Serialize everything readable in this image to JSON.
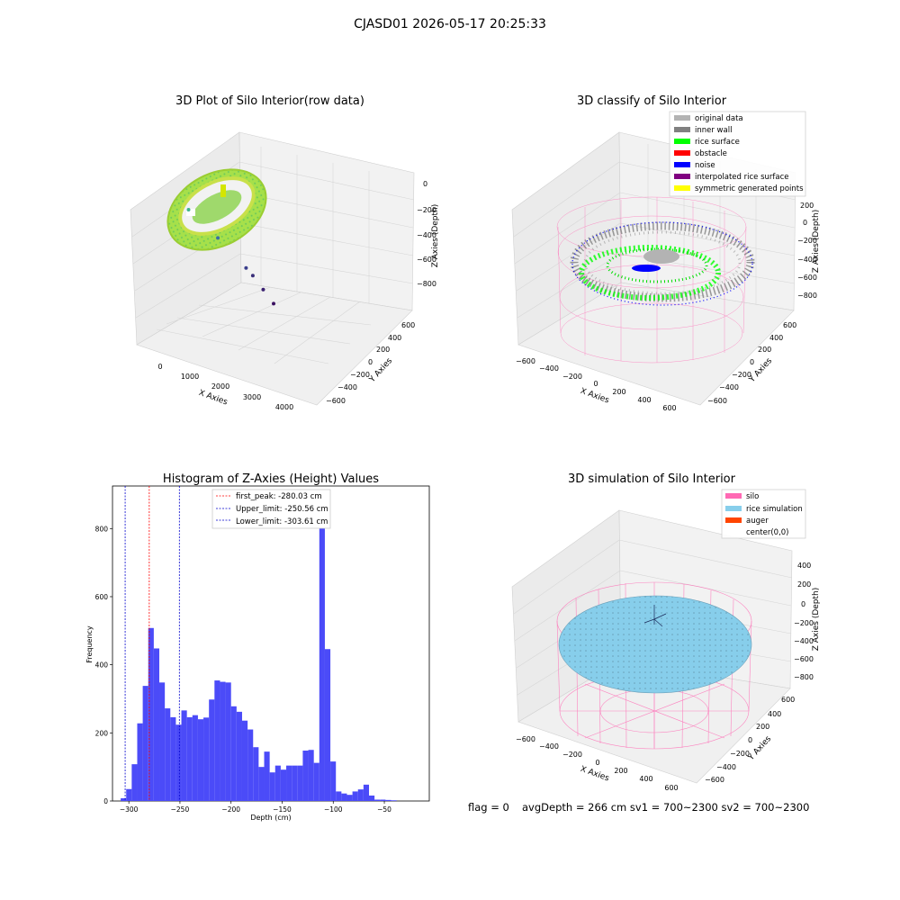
{
  "figure": {
    "suptitle": "CJASD01 2026-05-17 20:25:33",
    "footer": {
      "flag": "flag = 0",
      "stats": "avgDepth = 266 cm  sv1 = 700~2300  sv2 = 700~2300"
    }
  },
  "colors": {
    "hist": "#4b4bf8",
    "first_peak": "#ff0000",
    "limits": "#0000cc",
    "silo": "#ff69b4",
    "rice_sim": "#87ceeb",
    "auger": "#ff4500",
    "original": "#b3b3b3",
    "inner_wall": "#808080",
    "rice_surface": "#00ff00",
    "obstacle": "#ff0000",
    "noise": "#0000ff",
    "interp": "#800080",
    "symmetric": "#ffff00"
  },
  "chart_data": [
    {
      "type": "scatter",
      "title": "3D Plot of Silo Interior(row data)",
      "xlabel": "X Axies",
      "ylabel": "Y Axies",
      "zlabel": "Z Axies (Depth)",
      "x_ticks": [
        "0",
        "1000",
        "2000",
        "3000",
        "4000"
      ],
      "y_ticks": [
        "600",
        "400",
        "200",
        "0",
        "−200",
        "−400",
        "−600"
      ],
      "z_ticks": [
        "0",
        "−200",
        "−400",
        "−600",
        "−800"
      ],
      "outlier_points": [
        {
          "x": 1000,
          "y": 100,
          "z": -550
        },
        {
          "x": 1900,
          "y": 50,
          "z": -620
        },
        {
          "x": 2800,
          "y": 40,
          "z": -700
        },
        {
          "x": 3000,
          "y": 20,
          "z": -720
        },
        {
          "x": 3300,
          "y": -20,
          "z": -760
        },
        {
          "x": 3600,
          "y": -60,
          "z": -800
        }
      ]
    },
    {
      "type": "scatter",
      "title": "3D classify of Silo Interior",
      "xlabel": "X Axies",
      "ylabel": "Y Axies",
      "zlabel": "Z Axies (Depth)",
      "x_ticks": [
        "−600",
        "−400",
        "−200",
        "0",
        "200",
        "400",
        "600"
      ],
      "y_ticks": [
        "600",
        "400",
        "200",
        "0",
        "−200",
        "−400",
        "−600"
      ],
      "z_ticks": [
        "200",
        "0",
        "−200",
        "−400",
        "−600",
        "−800"
      ],
      "legend": [
        {
          "label": "original data",
          "color": "#b3b3b3"
        },
        {
          "label": "inner wall",
          "color": "#808080"
        },
        {
          "label": "rice surface",
          "color": "#00ff00"
        },
        {
          "label": "obstacle",
          "color": "#ff0000"
        },
        {
          "label": "noise",
          "color": "#0000ff"
        },
        {
          "label": "interpolated rice surface",
          "color": "#800080"
        },
        {
          "label": "symmetric generated points",
          "color": "#ffff00"
        }
      ]
    },
    {
      "type": "bar",
      "title": "Histogram of Z-Axies (Height) Values",
      "xlabel": "Depth (cm)",
      "ylabel": "Frequency",
      "xlim": [
        -316,
        -6
      ],
      "ylim": [
        0,
        925
      ],
      "x_ticks": [
        -300,
        -250,
        -200,
        -150,
        -100,
        -50
      ],
      "y_ticks": [
        0,
        200,
        400,
        600,
        800
      ],
      "bin_width": 5.4,
      "bins": [
        {
          "x": -308.0,
          "v": 8
        },
        {
          "x": -302.6,
          "v": 35
        },
        {
          "x": -297.2,
          "v": 108
        },
        {
          "x": -291.8,
          "v": 228
        },
        {
          "x": -286.4,
          "v": 338
        },
        {
          "x": -281.0,
          "v": 508
        },
        {
          "x": -275.6,
          "v": 448
        },
        {
          "x": -270.2,
          "v": 348
        },
        {
          "x": -264.8,
          "v": 272
        },
        {
          "x": -259.4,
          "v": 246
        },
        {
          "x": -254.0,
          "v": 224
        },
        {
          "x": -248.6,
          "v": 266
        },
        {
          "x": -243.2,
          "v": 246
        },
        {
          "x": -237.8,
          "v": 252
        },
        {
          "x": -232.4,
          "v": 240
        },
        {
          "x": -227.0,
          "v": 245
        },
        {
          "x": -221.6,
          "v": 298
        },
        {
          "x": -216.2,
          "v": 354
        },
        {
          "x": -210.8,
          "v": 350
        },
        {
          "x": -205.4,
          "v": 348
        },
        {
          "x": -200.0,
          "v": 278
        },
        {
          "x": -194.6,
          "v": 262
        },
        {
          "x": -189.2,
          "v": 236
        },
        {
          "x": -183.8,
          "v": 210
        },
        {
          "x": -178.4,
          "v": 158
        },
        {
          "x": -173.0,
          "v": 100
        },
        {
          "x": -167.6,
          "v": 145
        },
        {
          "x": -162.2,
          "v": 84
        },
        {
          "x": -156.8,
          "v": 104
        },
        {
          "x": -151.4,
          "v": 92
        },
        {
          "x": -146.0,
          "v": 104
        },
        {
          "x": -140.6,
          "v": 104
        },
        {
          "x": -135.2,
          "v": 104
        },
        {
          "x": -129.8,
          "v": 148
        },
        {
          "x": -124.4,
          "v": 150
        },
        {
          "x": -119.0,
          "v": 112
        },
        {
          "x": -113.6,
          "v": 880
        },
        {
          "x": -108.2,
          "v": 446
        },
        {
          "x": -102.8,
          "v": 116
        },
        {
          "x": -97.4,
          "v": 28
        },
        {
          "x": -92.0,
          "v": 22
        },
        {
          "x": -86.6,
          "v": 18
        },
        {
          "x": -81.2,
          "v": 28
        },
        {
          "x": -75.8,
          "v": 34
        },
        {
          "x": -70.4,
          "v": 48
        },
        {
          "x": -65.0,
          "v": 16
        },
        {
          "x": -59.6,
          "v": 4
        },
        {
          "x": -54.2,
          "v": 4
        },
        {
          "x": -48.8,
          "v": 3
        },
        {
          "x": -43.4,
          "v": 2
        }
      ],
      "lines": [
        {
          "label": "first_peak: -280.03 cm",
          "value": -280.03,
          "color": "#ff0000"
        },
        {
          "label": "Upper_limit: -250.56 cm",
          "value": -250.56,
          "color": "#0000cc"
        },
        {
          "label": "Lower_limit: -303.61 cm",
          "value": -303.61,
          "color": "#0000cc"
        }
      ],
      "legend_position": "top-center"
    },
    {
      "type": "area",
      "title": "3D simulation of Silo Interior",
      "xlabel": "X Axies",
      "ylabel": "Y Axies",
      "zlabel": "Z Axies (Depth)",
      "x_ticks": [
        "−600",
        "−400",
        "−200",
        "0",
        "200",
        "400",
        "600"
      ],
      "y_ticks": [
        "600",
        "400",
        "200",
        "0",
        "−200",
        "−400",
        "−600"
      ],
      "z_ticks": [
        "400",
        "200",
        "0",
        "−200",
        "−400",
        "−600",
        "−800"
      ],
      "legend": [
        {
          "label": "silo",
          "color": "#ff69b4"
        },
        {
          "label": "rice simulation",
          "color": "#87ceeb"
        },
        {
          "label": "auger",
          "color": "#ff4500"
        },
        {
          "label": "center(0,0)",
          "color": "#ffffff"
        }
      ]
    }
  ]
}
